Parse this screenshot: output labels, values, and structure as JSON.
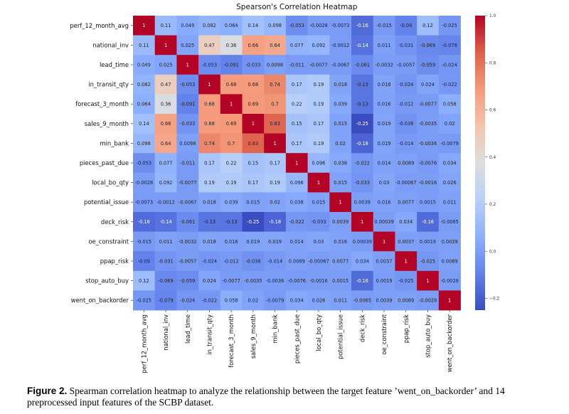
{
  "chart_data": {
    "type": "heatmap",
    "title": "Spearson's Correlation Heatmap",
    "labels": [
      "perf_12_month_avg",
      "national_inv",
      "lead_time",
      "in_transit_qty",
      "forecast_3_month",
      "sales_9_month",
      "min_bank",
      "pieces_past_due",
      "local_bo_qty",
      "potential_issue",
      "deck_risk",
      "oe_constraint",
      "ppap_risk",
      "stop_auto_buy",
      "went_on_backorder"
    ],
    "matrix": [
      [
        1,
        0.11,
        0.049,
        0.082,
        0.064,
        0.14,
        0.098,
        -0.053,
        -0.0028,
        -0.0073,
        -0.16,
        -0.015,
        -0.09,
        0.12,
        -0.025
      ],
      [
        0.11,
        1,
        0.025,
        0.47,
        0.36,
        0.66,
        0.64,
        0.077,
        0.092,
        -0.0012,
        -0.14,
        0.011,
        -0.031,
        -0.069,
        -0.079
      ],
      [
        0.049,
        0.025,
        1,
        -0.053,
        -0.091,
        -0.033,
        0.0098,
        -0.011,
        -0.0077,
        -0.0067,
        -0.061,
        -0.0032,
        -0.0057,
        -0.059,
        -0.024
      ],
      [
        0.082,
        0.47,
        -0.053,
        1,
        0.68,
        0.68,
        0.74,
        0.17,
        0.19,
        0.018,
        -0.13,
        0.018,
        -0.024,
        0.024,
        -0.022
      ],
      [
        0.064,
        0.36,
        -0.091,
        0.68,
        1,
        0.69,
        0.7,
        0.22,
        0.19,
        0.039,
        -0.13,
        0.016,
        -0.012,
        -0.0077,
        0.058
      ],
      [
        0.14,
        0.66,
        -0.033,
        0.68,
        0.69,
        1,
        0.83,
        0.15,
        0.17,
        0.015,
        -0.25,
        0.019,
        -0.038,
        -0.0035,
        0.02
      ],
      [
        0.098,
        0.64,
        0.0098,
        0.74,
        0.7,
        0.83,
        1,
        0.17,
        0.19,
        0.02,
        -0.18,
        0.019,
        -0.014,
        -0.0036,
        -0.0079
      ],
      [
        -0.053,
        0.077,
        -0.011,
        0.17,
        0.22,
        0.15,
        0.17,
        1,
        0.096,
        0.038,
        -0.022,
        0.014,
        0.0089,
        -0.0076,
        0.034
      ],
      [
        -0.0028,
        0.092,
        -0.0077,
        0.19,
        0.19,
        0.17,
        0.19,
        0.096,
        1,
        0.015,
        -0.033,
        0.03,
        -0.00067,
        -0.0016,
        0.026
      ],
      [
        -0.0073,
        -0.0012,
        -0.0067,
        0.018,
        0.039,
        0.015,
        0.02,
        0.038,
        0.015,
        1,
        0.0039,
        0.016,
        0.0077,
        0.0015,
        0.011
      ],
      [
        -0.16,
        -0.14,
        -0.061,
        -0.13,
        -0.13,
        -0.25,
        -0.18,
        -0.022,
        -0.033,
        0.0039,
        1,
        0.00039,
        0.034,
        -0.16,
        -0.0065
      ],
      [
        -0.015,
        0.011,
        -0.0032,
        0.018,
        0.016,
        0.019,
        0.019,
        0.014,
        0.03,
        0.016,
        0.00039,
        1,
        0.0037,
        0.0019,
        0.0039
      ],
      [
        -0.09,
        -0.031,
        -0.0057,
        -0.024,
        -0.012,
        -0.038,
        -0.014,
        0.0089,
        -0.00067,
        0.0077,
        0.034,
        0.0037,
        1,
        -0.025,
        0.0089
      ],
      [
        0.12,
        -0.069,
        -0.059,
        0.024,
        -0.0077,
        -0.0035,
        -0.0036,
        -0.0076,
        -0.0016,
        0.0015,
        -0.16,
        0.0019,
        -0.025,
        1,
        -0.0028
      ],
      [
        -0.025,
        -0.079,
        -0.024,
        -0.022,
        0.058,
        0.02,
        -0.0079,
        0.034,
        0.026,
        0.011,
        -0.0065,
        0.0039,
        0.0089,
        -0.0028,
        1
      ]
    ],
    "colorbar": {
      "ticks": [
        1.0,
        0.8,
        0.6,
        0.4,
        0.2,
        0.0,
        -0.2
      ],
      "tick_labels": [
        "1.0",
        "0.8",
        "0.6",
        "0.4",
        "0.2",
        "0.0",
        "−0.2"
      ],
      "range": [
        -0.25,
        1.0
      ],
      "colormap": "coolwarm"
    }
  },
  "caption": {
    "label": "Figure 2.",
    "text": " Spearman correlation heatmap to analyze the relationship between the target feature ’went_on_backorder’ and 14 preprocessed input features of the SCBP dataset."
  }
}
